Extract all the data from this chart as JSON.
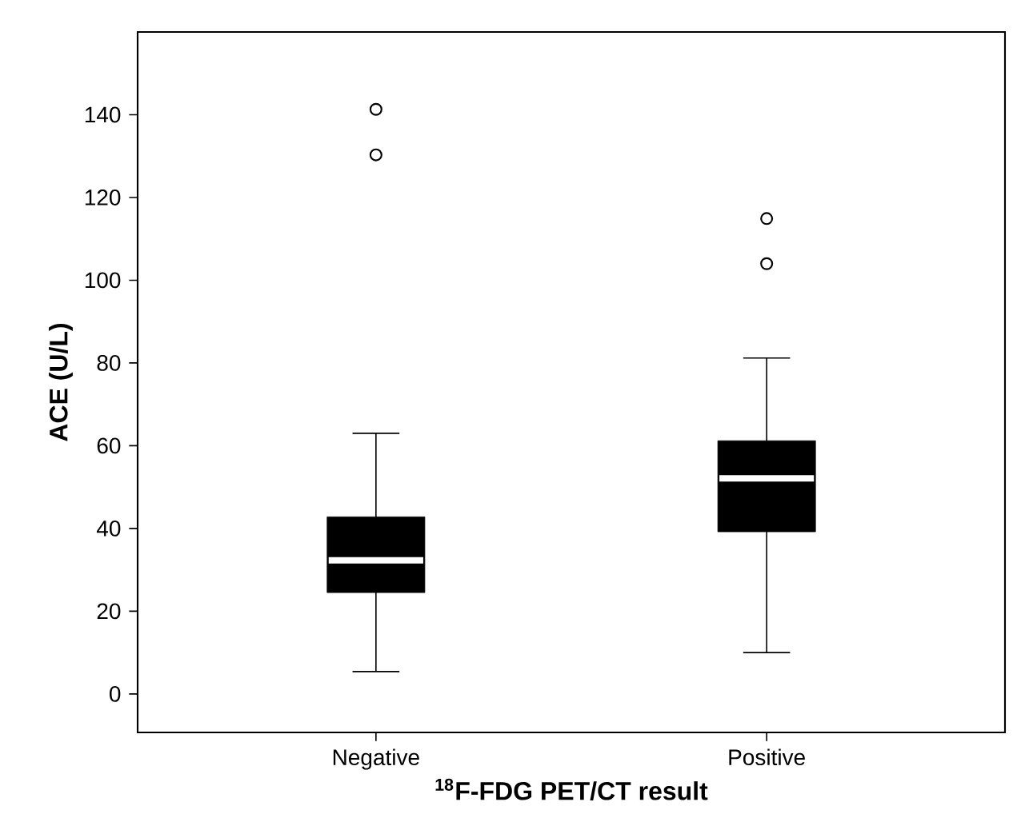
{
  "chart_data": {
    "type": "box",
    "categories": [
      "Negative",
      "Positive"
    ],
    "xlabel": "$^{18}$F-FDG PET/CT result",
    "ylabel": "ACE (U/L)",
    "ylim": [
      -9.3,
      160
    ],
    "yticks": [
      0,
      20,
      40,
      60,
      80,
      100,
      120,
      140
    ],
    "color": "#000000",
    "boxes": [
      {
        "low": 5.4,
        "q1": 24.5,
        "median": 32.3,
        "q3": 42.8,
        "high": 63,
        "outliers": [
          130.3,
          141.3
        ]
      },
      {
        "low": 10,
        "q1": 39.2,
        "median": 52.1,
        "q3": 61.2,
        "high": 81.2,
        "outliers": [
          104,
          114.9
        ]
      }
    ]
  }
}
